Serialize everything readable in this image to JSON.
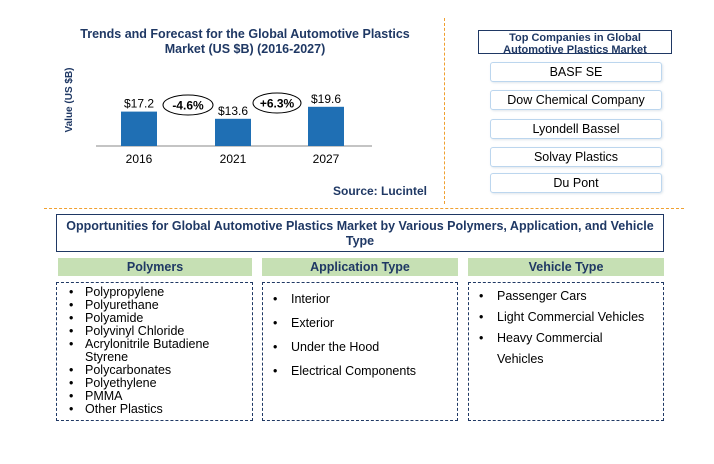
{
  "chart": {
    "title": "Trends and Forecast for the Global Automotive Plastics Market  (US $B) (2016-2027)",
    "source": "Source: Lucintel",
    "ylabel": "Value (US $B)",
    "bar_color": "#1f6fb4",
    "growth_labels": [
      "-4.6%",
      "+6.3%"
    ]
  },
  "chart_data": {
    "type": "bar",
    "categories": [
      "2016",
      "2021",
      "2027"
    ],
    "values": [
      17.2,
      13.6,
      19.6
    ],
    "value_labels": [
      "$17.2",
      "$13.6",
      "$19.6"
    ],
    "ylabel": "Value (US $B)"
  },
  "companies": {
    "title": "Top Companies in Global Automotive Plastics Market",
    "items": [
      "BASF SE",
      "Dow Chemical Company",
      "Lyondell Bassel",
      "Solvay Plastics",
      "Du Pont"
    ]
  },
  "opportunities": {
    "title": "Opportunities for Global Automotive Plastics Market by Various Polymers, Application, and Vehicle Type",
    "header_color": "#c6e0b4",
    "columns": [
      {
        "title": "Polymers",
        "items": [
          "Polypropylene",
          "Polyurethane",
          "Polyamide",
          "Polyvinyl  Chloride",
          "Acrylonitrile Butadiene Styrene",
          "Polycarbonates",
          "Polyethylene",
          "PMMA",
          "Other Plastics"
        ]
      },
      {
        "title": "Application Type",
        "items": [
          "Interior",
          "Exterior",
          "Under the Hood",
          "Electrical Components"
        ]
      },
      {
        "title": "Vehicle Type",
        "items": [
          "Passenger Cars",
          "Light Commercial Vehicles",
          "Heavy  Commercial Vehicles"
        ]
      }
    ]
  }
}
